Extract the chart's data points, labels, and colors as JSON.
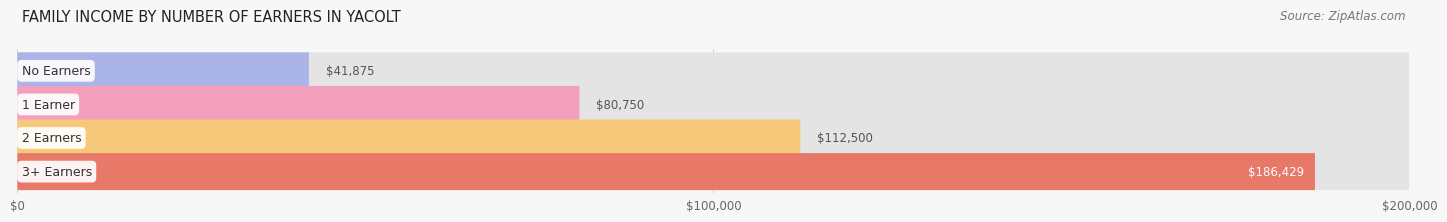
{
  "title": "FAMILY INCOME BY NUMBER OF EARNERS IN YACOLT",
  "source": "Source: ZipAtlas.com",
  "categories": [
    "No Earners",
    "1 Earner",
    "2 Earners",
    "3+ Earners"
  ],
  "values": [
    41875,
    80750,
    112500,
    186429
  ],
  "labels": [
    "$41,875",
    "$80,750",
    "$112,500",
    "$186,429"
  ],
  "bar_colors": [
    "#aab4e6",
    "#f2a0bc",
    "#f5c87a",
    "#e87868"
  ],
  "bar_bg_color": "#e4e4e4",
  "background_color": "#f7f7f7",
  "xlim": [
    0,
    200000
  ],
  "xticks": [
    0,
    100000,
    200000
  ],
  "xticklabels": [
    "$0",
    "$100,000",
    "$200,000"
  ],
  "title_fontsize": 10.5,
  "source_fontsize": 8.5,
  "label_fontsize": 8.5,
  "category_fontsize": 9,
  "bar_height": 0.55,
  "label_inside_idx": 3
}
